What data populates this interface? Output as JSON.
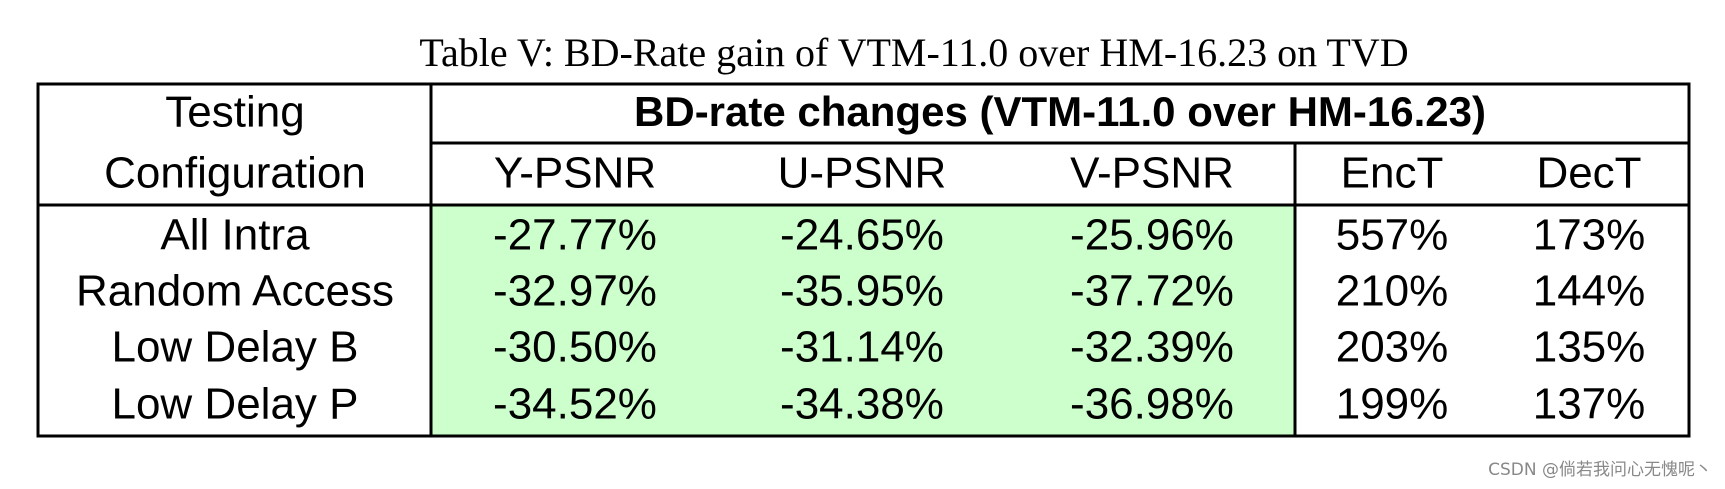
{
  "title": "Table V: BD-Rate gain of VTM-11.0 over HM-16.23 on TVD",
  "table": {
    "corner": [
      "Testing",
      "Configuration"
    ],
    "group": "BD-rate changes (VTM-11.0 over HM-16.23)",
    "columns": [
      "Y-PSNR",
      "U-PSNR",
      "V-PSNR",
      "EncT",
      "DecT"
    ],
    "rows": [
      [
        "All Intra",
        "-27.77%",
        "-24.65%",
        "-25.96%",
        "557%",
        "173%"
      ],
      [
        "Random Access",
        "-32.97%",
        "-35.95%",
        "-37.72%",
        "210%",
        "144%"
      ],
      [
        "Low Delay B",
        "-30.50%",
        "-31.14%",
        "-32.39%",
        "203%",
        "135%"
      ],
      [
        "Low Delay P",
        "-34.52%",
        "-34.38%",
        "-36.98%",
        "199%",
        "137%"
      ]
    ]
  },
  "watermark": "CSDN @倘若我问心无愧呢丶"
}
